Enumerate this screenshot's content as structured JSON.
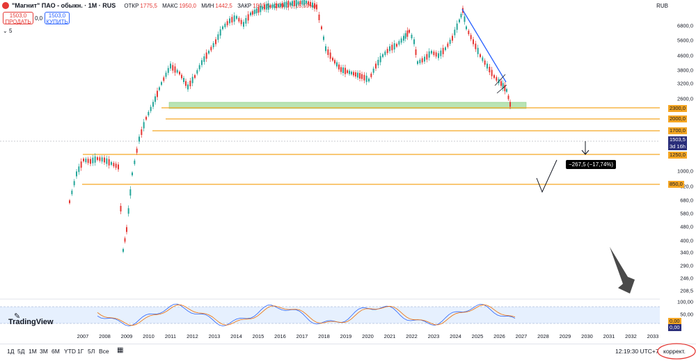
{
  "header": {
    "title": "\"Магнит\" ПАО - обыкн. · 1М · RUS",
    "ohlc": [
      {
        "key": "ОТКР",
        "value": "1775,5"
      },
      {
        "key": "МАКС",
        "value": "1950,0"
      },
      {
        "key": "МИН",
        "value": "1442,5"
      },
      {
        "key": "ЗАКР",
        "value": "1503,5 −299,0 (−16,59%)"
      }
    ],
    "sell": {
      "price": "1503,0",
      "label": "ПРОДАТЬ"
    },
    "spread": "0,0",
    "buy": {
      "price": "1503,0",
      "label": "КУПИТЬ"
    },
    "indicator_count": "5",
    "currency": "RUB"
  },
  "price_axis": [
    "6800,0",
    "5600,0",
    "4600,0",
    "3800,0",
    "3200,0",
    "2600,0",
    "1000,0",
    "820,0",
    "680,0",
    "580,0",
    "480,0",
    "400,0",
    "340,0",
    "290,0",
    "246,0",
    "208,5",
    "100,00",
    "50,00"
  ],
  "price_tags": [
    {
      "label": "2300,0",
      "style": "orange"
    },
    {
      "label": "2000,0",
      "style": "orange"
    },
    {
      "label": "1700,0",
      "style": "orange"
    },
    {
      "label": "1503,5",
      "style": "blue"
    },
    {
      "label": "3d 16h",
      "style": "blue"
    },
    {
      "label": "1250,0",
      "style": "orange"
    },
    {
      "label": "850,0",
      "style": "orange"
    },
    {
      "label": "0,00",
      "style": "orange"
    },
    {
      "label": "0,00",
      "style": "blue"
    }
  ],
  "years": [
    "2007",
    "2008",
    "2009",
    "2010",
    "2011",
    "2012",
    "2013",
    "2014",
    "2015",
    "2016",
    "2017",
    "2018",
    "2019",
    "2020",
    "2021",
    "2022",
    "2023",
    "2024",
    "2025",
    "2026",
    "2027",
    "2028",
    "2029",
    "2030",
    "2031",
    "2032",
    "2033"
  ],
  "measure_label": "−267,5 (−17,74%)",
  "watermark": "TradingView",
  "toolbar": {
    "timeframes": [
      "1Д",
      "5Д",
      "1М",
      "3М",
      "6М",
      "YTD",
      "1Г",
      "5Л",
      "Все"
    ],
    "clock": "12:19:30 UTC+7",
    "correction": "коррект."
  },
  "colors": {
    "up": "#26a69a",
    "down": "#e53935",
    "level": "#f5a623",
    "trend": "#2962ff",
    "zone": "#b9e4b4"
  }
}
